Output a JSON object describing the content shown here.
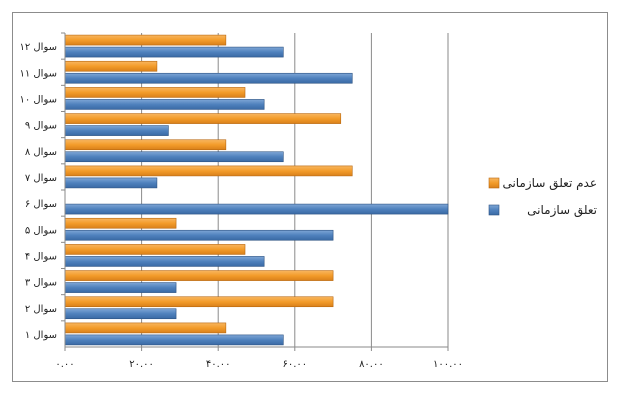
{
  "chart_data": {
    "type": "bar",
    "orientation": "horizontal",
    "categories": [
      "سوال ۱",
      "سوال ۲",
      "سوال ۳",
      "سوال ۴",
      "سوال ۵",
      "سوال ۶",
      "سوال ۷",
      "سوال ۸",
      "سوال ۹",
      "سوال ۱۰",
      "سوال ۱۱",
      "سوال ۱۲"
    ],
    "series": [
      {
        "name": "تعلق سازمانی",
        "color": "#4f81bd",
        "values": [
          57,
          29,
          29,
          52,
          70,
          100,
          24,
          57,
          27,
          52,
          75,
          57
        ]
      },
      {
        "name": "عدم تعلق سازمانی",
        "color": "#f39c2a",
        "values": [
          42,
          70,
          70,
          47,
          29,
          0,
          75,
          42,
          72,
          47,
          24,
          42
        ]
      }
    ],
    "x_ticks": [
      "۰.۰۰",
      "۲۰.۰۰",
      "۴۰.۰۰",
      "۶۰.۰۰",
      "۸۰.۰۰",
      "۱۰۰.۰۰"
    ],
    "xlim": [
      0,
      100
    ],
    "grid": "vertical",
    "legend_position": "right",
    "title": "",
    "xlabel": "",
    "ylabel": ""
  }
}
